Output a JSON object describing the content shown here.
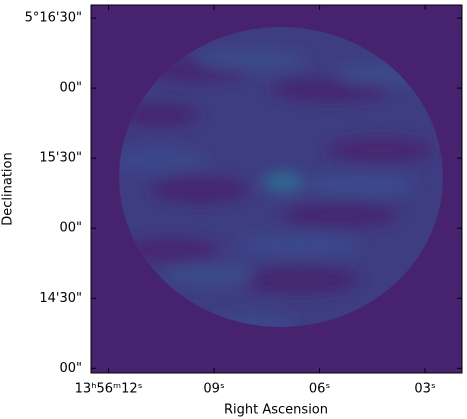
{
  "chart_data": {
    "type": "image",
    "xlabel": "Right Ascension",
    "ylabel": "Declination",
    "xlim": [
      12.5,
      1.95
    ],
    "xticks": [
      {
        "value": 12,
        "label": "13ʰ56ᵐ12ˢ"
      },
      {
        "value": 9,
        "label": "09ˢ"
      },
      {
        "value": 6,
        "label": "06ˢ"
      },
      {
        "value": 3,
        "label": "03ˢ"
      }
    ],
    "ylim": [
      -2,
      155.6
    ],
    "yticks": [
      {
        "value": 150,
        "label": "5°16'30\""
      },
      {
        "value": 120,
        "label": "00\""
      },
      {
        "value": 90,
        "label": "15'30\""
      },
      {
        "value": 60,
        "label": "00\""
      },
      {
        "value": 30,
        "label": "14'30\""
      },
      {
        "value": 0,
        "label": "00\""
      }
    ]
  }
}
